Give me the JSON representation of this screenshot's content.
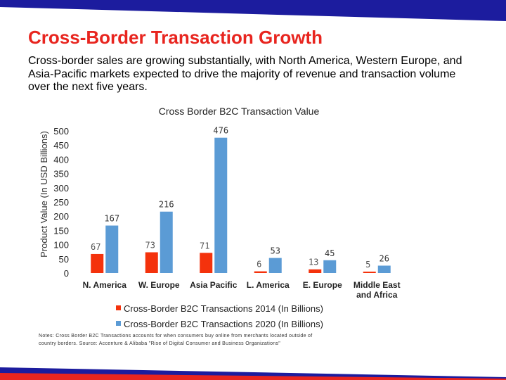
{
  "slide": {
    "title": "Cross-Border Transaction Growth",
    "subtitle": "Cross-border sales are growing substantially, with North America, Western Europe, and Asia-Pacific markets expected to drive the majority of revenue and transaction volume over the next five years.",
    "notes": "Notes: Cross Border B2C Transactions accounts for when consumers buy online from merchants located outside of country borders. Source: Accenture & Alibaba \"Rise of Digital Consumer and Business Organizations\"",
    "accent_color": "#e8251f",
    "band_color": "#1c1c9e"
  },
  "chart_data": {
    "type": "bar",
    "title": "Cross Border B2C Transaction Value",
    "xlabel": "",
    "ylabel": "Product Value (In USD Billions)",
    "ylim": [
      0,
      500
    ],
    "yticks": [
      0,
      50,
      100,
      150,
      200,
      250,
      300,
      350,
      400,
      450,
      500
    ],
    "categories": [
      "N. America",
      "W. Europe",
      "Asia Pacific",
      "L. America",
      "E. Europe",
      "Middle East and Africa"
    ],
    "series": [
      {
        "name": "Cross-Border B2C Transactions 2014 (In Billions)",
        "color": "#f4320c",
        "values": [
          67,
          73,
          71,
          6,
          13,
          5
        ]
      },
      {
        "name": "Cross-Border B2C Transactions 2020 (In Billions)",
        "color": "#5b9bd5",
        "values": [
          167,
          216,
          476,
          53,
          45,
          26
        ]
      }
    ],
    "legend_position": "bottom"
  }
}
